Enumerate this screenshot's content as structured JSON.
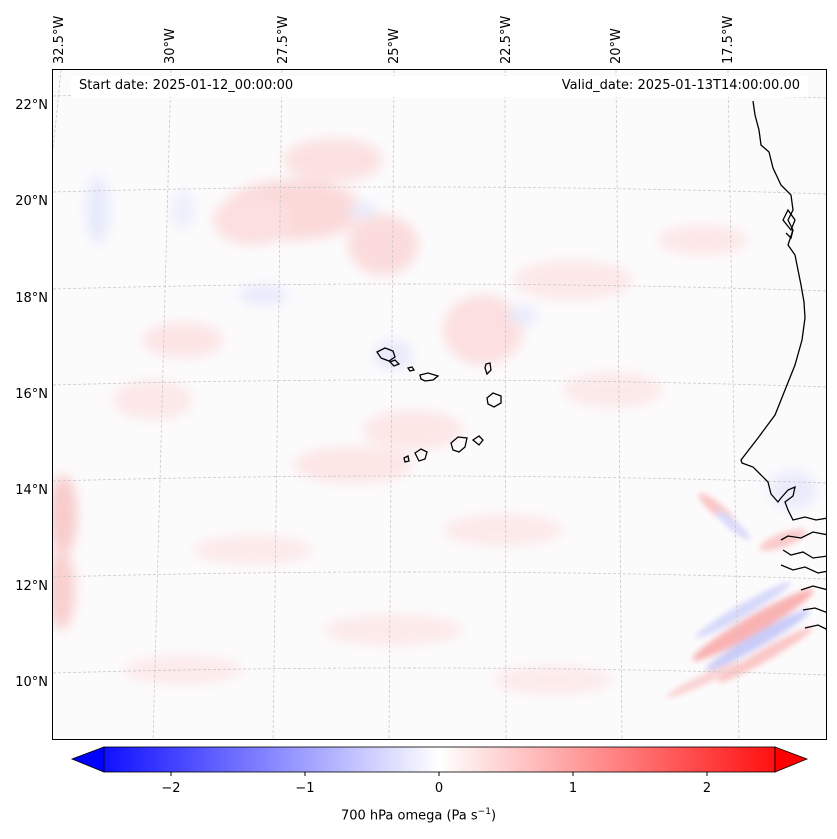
{
  "map": {
    "start_date_label": "Start date: 2025-01-12_00:00:00",
    "valid_date_label": "Valid_date: 2025-01-13T14:00:00.00",
    "lat_labels": [
      "22°N",
      "20°N",
      "18°N",
      "16°N",
      "14°N",
      "12°N",
      "10°N"
    ],
    "lon_labels": [
      "32.5°W",
      "30°W",
      "27.5°W",
      "25°W",
      "22.5°W",
      "20°W",
      "17.5°W"
    ]
  },
  "colorbar": {
    "title": "700 hPa omega (Pa s",
    "title_sup": "−1",
    "title_close": ")",
    "tick_labels": [
      "−2",
      "−1",
      "0",
      "1",
      "2"
    ],
    "range": [
      -2.7,
      2.7
    ],
    "colors": {
      "negative": "#0000ff",
      "zero": "#ffffff",
      "positive": "#ff0000"
    }
  },
  "colors": {
    "coastline": "#000000",
    "grid": "#c8c8c8"
  }
}
